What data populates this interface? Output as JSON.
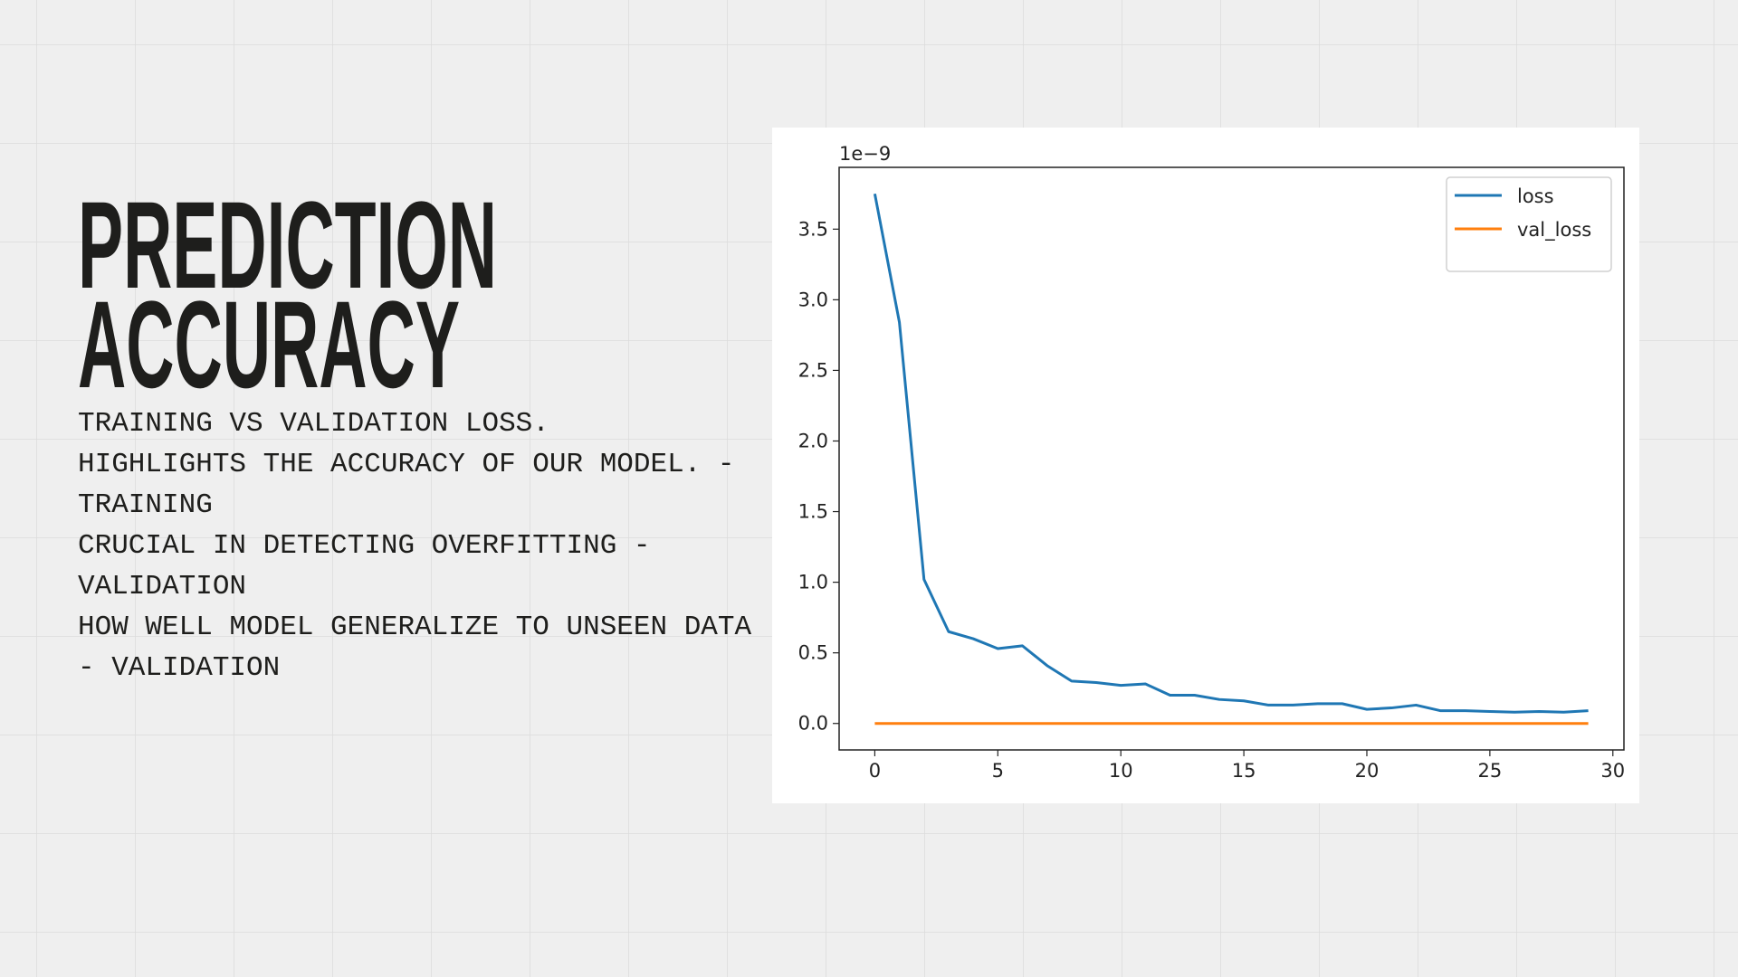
{
  "title_lines": [
    "PREDICTION",
    "ACCURACY"
  ],
  "body": [
    "TRAINING VS VALIDATION LOSS.",
    "HIGHLIGHTS THE ACCURACY OF OUR MODEL. - TRAINING",
    "CRUCIAL IN DETECTING OVERFITTING - VALIDATION",
    "HOW WELL MODEL GENERALIZE TO UNSEEN DATA - VALIDATION"
  ],
  "chart_data": {
    "type": "line",
    "y_offset_label": "1e−9",
    "x": [
      0,
      1,
      2,
      3,
      4,
      5,
      6,
      7,
      8,
      9,
      10,
      11,
      12,
      13,
      14,
      15,
      16,
      17,
      18,
      19,
      20,
      21,
      22,
      23,
      24,
      25,
      26,
      27,
      28,
      29
    ],
    "series": [
      {
        "name": "loss",
        "color": "#1f77b4",
        "values": [
          3.75,
          2.84,
          1.02,
          0.65,
          0.6,
          0.53,
          0.55,
          0.41,
          0.3,
          0.29,
          0.27,
          0.28,
          0.2,
          0.2,
          0.17,
          0.16,
          0.13,
          0.13,
          0.14,
          0.14,
          0.1,
          0.11,
          0.13,
          0.09,
          0.09,
          0.085,
          0.08,
          0.085,
          0.08,
          0.09
        ]
      },
      {
        "name": "val_loss",
        "color": "#ff7f0e",
        "values": [
          0,
          0,
          0,
          0,
          0,
          0,
          0,
          0,
          0,
          0,
          0,
          0,
          0,
          0,
          0,
          0,
          0,
          0,
          0,
          0,
          0,
          0,
          0,
          0,
          0,
          0,
          0,
          0,
          0,
          0
        ]
      }
    ],
    "xlim": [
      -1.45,
      30.45
    ],
    "ylim": [
      -0.1875,
      3.9375
    ],
    "xticks": [
      0,
      5,
      10,
      15,
      20,
      25,
      30
    ],
    "yticks": [
      {
        "value": 0,
        "label": "0.0"
      },
      {
        "value": 0.5,
        "label": "0.5"
      },
      {
        "value": 1,
        "label": "1.0"
      },
      {
        "value": 1.5,
        "label": "1.5"
      },
      {
        "value": 2,
        "label": "2.0"
      },
      {
        "value": 2.5,
        "label": "2.5"
      },
      {
        "value": 3,
        "label": "3.0"
      },
      {
        "value": 3.5,
        "label": "3.5"
      }
    ],
    "legend": "upper right"
  }
}
